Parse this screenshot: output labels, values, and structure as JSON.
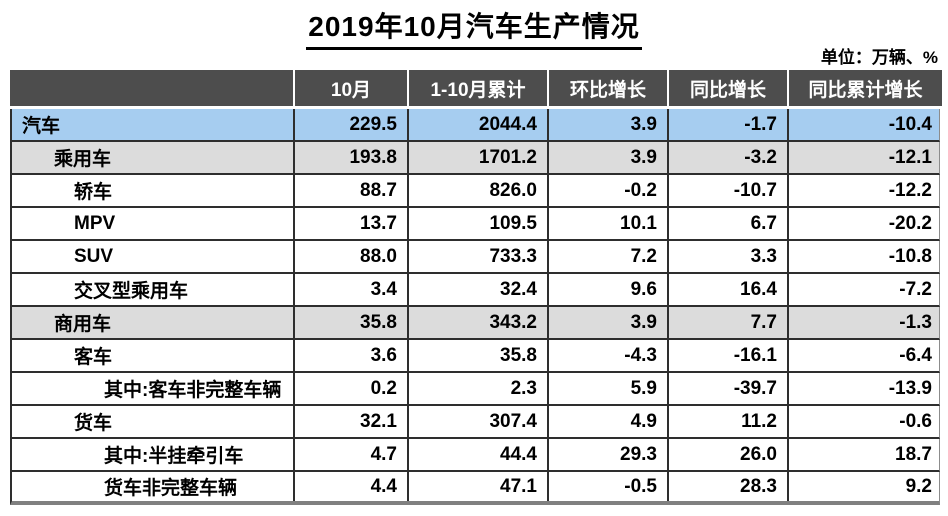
{
  "title": "2019年10月汽车生产情况",
  "unit_label": "单位：万辆、%",
  "colors": {
    "header_bg": "#4d4d4d",
    "header_text": "#ffffff",
    "row_highlight_blue": "#a6cdf0",
    "row_highlight_gray": "#dcdcdc",
    "row_default": "#ffffff",
    "grid_line": "#2e2e2e",
    "table_bottom_line": "#808080",
    "text": "#000000"
  },
  "table": {
    "corner_label": "",
    "columns": [
      "10月",
      "1-10月累计",
      "环比增长",
      "同比增长",
      "同比累计增长"
    ],
    "rows": [
      {
        "label": "汽车",
        "level": 0,
        "highlight": "blue",
        "values": [
          "229.5",
          "2044.4",
          "3.9",
          "-1.7",
          "-10.4"
        ]
      },
      {
        "label": "乘用车",
        "level": 1,
        "highlight": "gray",
        "values": [
          "193.8",
          "1701.2",
          "3.9",
          "-3.2",
          "-12.1"
        ]
      },
      {
        "label": "轿车",
        "level": 2,
        "highlight": "none",
        "values": [
          "88.7",
          "826.0",
          "-0.2",
          "-10.7",
          "-12.2"
        ]
      },
      {
        "label": "MPV",
        "level": 2,
        "highlight": "none",
        "values": [
          "13.7",
          "109.5",
          "10.1",
          "6.7",
          "-20.2"
        ]
      },
      {
        "label": "SUV",
        "level": 2,
        "highlight": "none",
        "values": [
          "88.0",
          "733.3",
          "7.2",
          "3.3",
          "-10.8"
        ]
      },
      {
        "label": "交叉型乘用车",
        "level": 2,
        "highlight": "none",
        "values": [
          "3.4",
          "32.4",
          "9.6",
          "16.4",
          "-7.2"
        ]
      },
      {
        "label": "商用车",
        "level": 1,
        "highlight": "gray",
        "values": [
          "35.8",
          "343.2",
          "3.9",
          "7.7",
          "-1.3"
        ]
      },
      {
        "label": "客车",
        "level": 2,
        "highlight": "none",
        "values": [
          "3.6",
          "35.8",
          "-4.3",
          "-16.1",
          "-6.4"
        ]
      },
      {
        "label": "其中:客车非完整车辆",
        "level": 3,
        "highlight": "none",
        "values": [
          "0.2",
          "2.3",
          "5.9",
          "-39.7",
          "-13.9"
        ]
      },
      {
        "label": "货车",
        "level": 2,
        "highlight": "none",
        "values": [
          "32.1",
          "307.4",
          "4.9",
          "11.2",
          "-0.6"
        ]
      },
      {
        "label": "其中:半挂牵引车",
        "level": 3,
        "highlight": "none",
        "values": [
          "4.7",
          "44.4",
          "29.3",
          "26.0",
          "18.7"
        ]
      },
      {
        "label": "货车非完整车辆",
        "level": 3,
        "highlight": "none",
        "values": [
          "4.4",
          "47.1",
          "-0.5",
          "28.3",
          "9.2"
        ]
      }
    ]
  },
  "chart_data": {
    "type": "table",
    "title": "2019年10月汽车生产情况",
    "unit": "万辆、%",
    "columns": [
      "",
      "10月",
      "1-10月累计",
      "环比增长",
      "同比增长",
      "同比累计增长"
    ],
    "rows": [
      [
        "汽车",
        229.5,
        2044.4,
        3.9,
        -1.7,
        -10.4
      ],
      [
        "乘用车",
        193.8,
        1701.2,
        3.9,
        -3.2,
        -12.1
      ],
      [
        "轿车",
        88.7,
        826.0,
        -0.2,
        -10.7,
        -12.2
      ],
      [
        "MPV",
        13.7,
        109.5,
        10.1,
        6.7,
        -20.2
      ],
      [
        "SUV",
        88.0,
        733.3,
        7.2,
        3.3,
        -10.8
      ],
      [
        "交叉型乘用车",
        3.4,
        32.4,
        9.6,
        16.4,
        -7.2
      ],
      [
        "商用车",
        35.8,
        343.2,
        3.9,
        7.7,
        -1.3
      ],
      [
        "客车",
        3.6,
        35.8,
        -4.3,
        -16.1,
        -6.4
      ],
      [
        "其中:客车非完整车辆",
        0.2,
        2.3,
        5.9,
        -39.7,
        -13.9
      ],
      [
        "货车",
        32.1,
        307.4,
        4.9,
        11.2,
        -0.6
      ],
      [
        "其中:半挂牵引车",
        4.7,
        44.4,
        29.3,
        26.0,
        18.7
      ],
      [
        "货车非完整车辆",
        4.4,
        47.1,
        -0.5,
        28.3,
        9.2
      ]
    ]
  }
}
